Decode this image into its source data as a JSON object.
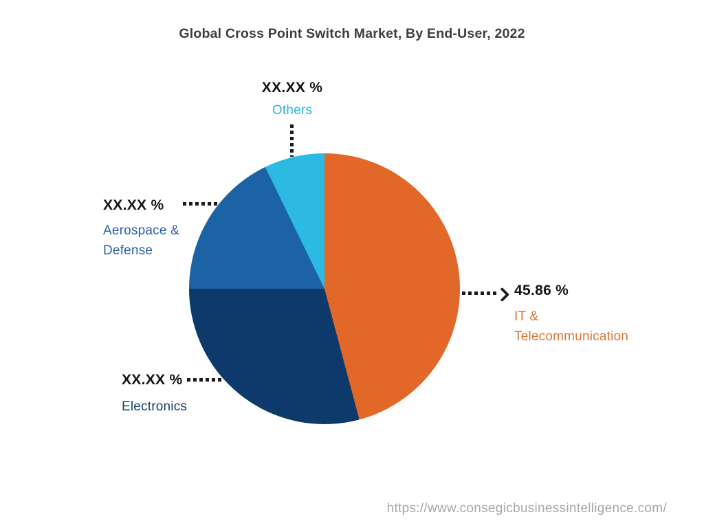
{
  "page": {
    "background": "#ffffff",
    "footer_url": "https://www.consegicbusinessintelligence.com/"
  },
  "chart_data": {
    "type": "pie",
    "title": "Global Cross Point Switch Market, By End-User, 2022",
    "legend": "none",
    "start_angle_deg": 0,
    "direction": "clockwise",
    "connector_style": "dotted-leader-lines",
    "connector_color": "#1b1b1b",
    "value_text_color": "#141414",
    "slices": [
      {
        "label": "IT & Telecommunication",
        "label_lines": [
          "IT &",
          "Telecommunication"
        ],
        "display_value": "45.86 %",
        "value_pct": 45.86,
        "masked": false,
        "color": "#e26829",
        "label_color": "#db7533"
      },
      {
        "label": "Electronics",
        "label_lines": [
          "Electronics"
        ],
        "display_value": "XX.XX %",
        "value_pct": 29.14,
        "masked": true,
        "color": "#0d3a6b",
        "label_color": "#14406f"
      },
      {
        "label": "Aerospace & Defense",
        "label_lines": [
          "Aerospace &",
          "Defense"
        ],
        "display_value": "XX.XX %",
        "value_pct": 17.78,
        "masked": true,
        "color": "#1c63a5",
        "label_color": "#2d5fa6"
      },
      {
        "label": "Others",
        "label_lines": [
          "Others"
        ],
        "display_value": "XX.XX %",
        "value_pct": 7.22,
        "masked": true,
        "color": "#2cbae3",
        "label_color": "#29b6dd"
      }
    ]
  }
}
